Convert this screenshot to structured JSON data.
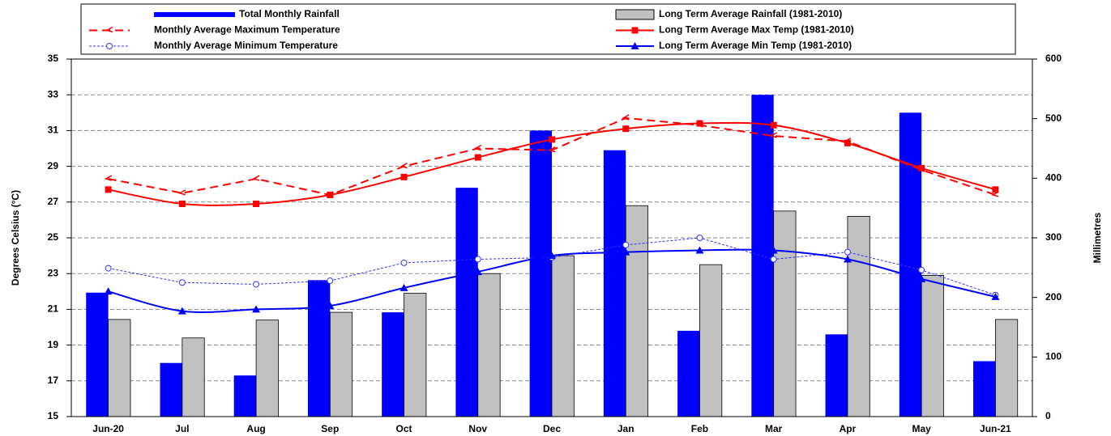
{
  "chart_data": {
    "type": "combo",
    "y_label": "Degrees Celsius (°C)",
    "y2_label": "Millimetres",
    "categories": [
      "Jun-20",
      "Jul",
      "Aug",
      "Sep",
      "Oct",
      "Nov",
      "Dec",
      "Jan",
      "Feb",
      "Mar",
      "Apr",
      "May",
      "Jun-21"
    ],
    "ylim": [
      15,
      35
    ],
    "yticks": [
      15,
      17,
      19,
      21,
      23,
      25,
      27,
      29,
      31,
      33,
      35
    ],
    "y2lim": [
      0,
      600
    ],
    "y2ticks": [
      0,
      100,
      200,
      300,
      400,
      500,
      600
    ],
    "grid": true,
    "series": [
      {
        "name": "Total Monthly Rainfall",
        "kind": "bar",
        "axis": "y2",
        "color": "#0000ff",
        "values": [
          208,
          90,
          69,
          229,
          175,
          384,
          480,
          447,
          144,
          540,
          138,
          510,
          93
        ]
      },
      {
        "name": "Long Term Average Rainfall (1981-2010)",
        "kind": "bar",
        "axis": "y2",
        "color": "#c0c0c0",
        "values": [
          163,
          132,
          162,
          175,
          207,
          240,
          270,
          354,
          255,
          345,
          336,
          237,
          163
        ]
      },
      {
        "name": "Monthly Average Maximum Temperature",
        "kind": "line",
        "color": "#ff0000",
        "line_style": "dashed",
        "marker": "arrow",
        "values": [
          28.3,
          27.5,
          28.3,
          27.4,
          29.0,
          30.0,
          29.9,
          31.7,
          31.3,
          30.7,
          30.4,
          28.8,
          27.4
        ]
      },
      {
        "name": "Long Term Average Max Temp (1981-2010)",
        "kind": "line",
        "color": "#ff0000",
        "line_style": "solid",
        "marker": "square",
        "smooth": true,
        "values": [
          27.7,
          26.9,
          26.9,
          27.4,
          28.4,
          29.5,
          30.5,
          31.1,
          31.4,
          31.3,
          30.3,
          28.9,
          27.7
        ]
      },
      {
        "name": "Monthly Average Minimum Temperature",
        "kind": "line",
        "color": "#3333ff",
        "line_style": "dotted",
        "marker": "circle-open",
        "values": [
          23.3,
          22.5,
          22.4,
          22.6,
          23.6,
          23.8,
          23.9,
          24.6,
          25.0,
          23.8,
          24.2,
          23.2,
          21.8
        ]
      },
      {
        "name": "Long Term Average Min Temp (1981-2010)",
        "kind": "line",
        "color": "#0000ff",
        "line_style": "solid",
        "marker": "triangle",
        "smooth": true,
        "values": [
          22.0,
          20.9,
          21.0,
          21.2,
          22.2,
          23.1,
          24.0,
          24.2,
          24.3,
          24.3,
          23.8,
          22.7,
          21.7
        ]
      }
    ],
    "legend_order": [
      0,
      1,
      2,
      3,
      4,
      5
    ]
  }
}
